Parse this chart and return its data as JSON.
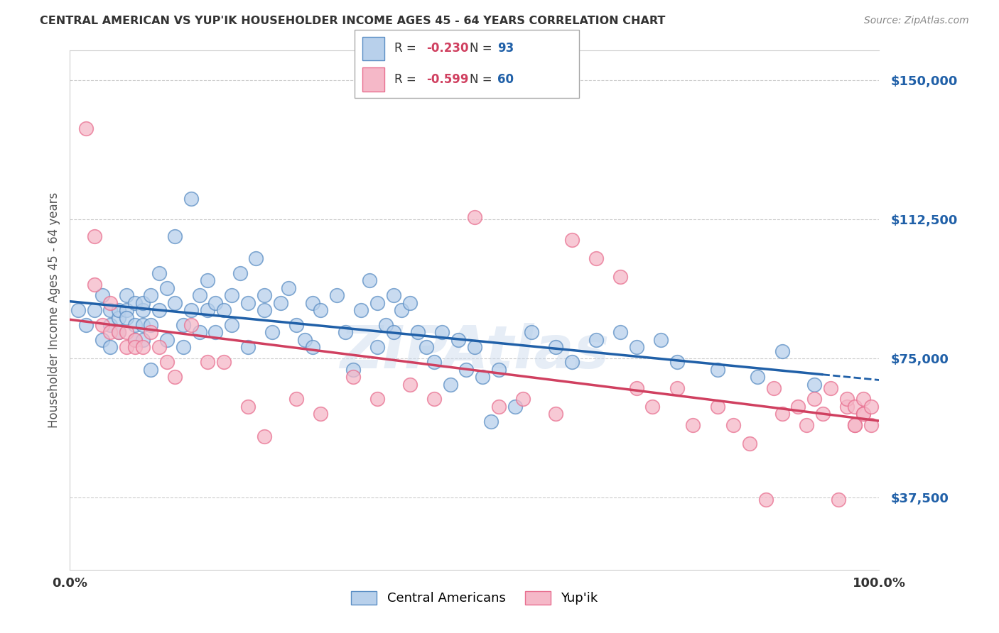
{
  "title": "CENTRAL AMERICAN VS YUP'IK HOUSEHOLDER INCOME AGES 45 - 64 YEARS CORRELATION CHART",
  "source": "Source: ZipAtlas.com",
  "ylabel": "Householder Income Ages 45 - 64 years",
  "ytick_values": [
    37500,
    75000,
    112500,
    150000
  ],
  "ymin": 18000,
  "ymax": 158000,
  "xmin": 0.0,
  "xmax": 1.0,
  "blue_R": "-0.230",
  "blue_N": "93",
  "pink_R": "-0.599",
  "pink_N": "60",
  "blue_fill": "#b8d0eb",
  "pink_fill": "#f5b8c8",
  "blue_edge": "#5b8ec4",
  "pink_edge": "#e87090",
  "blue_line_color": "#2060a8",
  "pink_line_color": "#d04060",
  "r_color": "#d04060",
  "n_color": "#2060a8",
  "watermark": "ZIPAtlas",
  "legend_blue_label": "Central Americans",
  "legend_pink_label": "Yup'ik",
  "blue_scatter_x": [
    0.01,
    0.02,
    0.03,
    0.04,
    0.04,
    0.05,
    0.05,
    0.05,
    0.06,
    0.06,
    0.06,
    0.07,
    0.07,
    0.07,
    0.08,
    0.08,
    0.08,
    0.09,
    0.09,
    0.09,
    0.09,
    0.1,
    0.1,
    0.1,
    0.11,
    0.11,
    0.12,
    0.12,
    0.13,
    0.13,
    0.14,
    0.14,
    0.15,
    0.15,
    0.16,
    0.16,
    0.17,
    0.17,
    0.18,
    0.18,
    0.19,
    0.2,
    0.2,
    0.21,
    0.22,
    0.22,
    0.23,
    0.24,
    0.24,
    0.25,
    0.26,
    0.27,
    0.28,
    0.29,
    0.3,
    0.3,
    0.31,
    0.33,
    0.34,
    0.35,
    0.36,
    0.37,
    0.38,
    0.38,
    0.39,
    0.4,
    0.4,
    0.41,
    0.42,
    0.43,
    0.44,
    0.45,
    0.46,
    0.47,
    0.48,
    0.49,
    0.5,
    0.51,
    0.52,
    0.53,
    0.55,
    0.57,
    0.6,
    0.62,
    0.65,
    0.68,
    0.7,
    0.73,
    0.75,
    0.8,
    0.85,
    0.88,
    0.92
  ],
  "blue_scatter_y": [
    88000,
    84000,
    88000,
    92000,
    80000,
    88000,
    84000,
    78000,
    86000,
    88000,
    82000,
    88000,
    86000,
    92000,
    84000,
    80000,
    90000,
    88000,
    84000,
    80000,
    90000,
    92000,
    84000,
    72000,
    98000,
    88000,
    94000,
    80000,
    108000,
    90000,
    84000,
    78000,
    118000,
    88000,
    92000,
    82000,
    96000,
    88000,
    90000,
    82000,
    88000,
    92000,
    84000,
    98000,
    90000,
    78000,
    102000,
    92000,
    88000,
    82000,
    90000,
    94000,
    84000,
    80000,
    90000,
    78000,
    88000,
    92000,
    82000,
    72000,
    88000,
    96000,
    90000,
    78000,
    84000,
    92000,
    82000,
    88000,
    90000,
    82000,
    78000,
    74000,
    82000,
    68000,
    80000,
    72000,
    78000,
    70000,
    58000,
    72000,
    62000,
    82000,
    78000,
    74000,
    80000,
    82000,
    78000,
    80000,
    74000,
    72000,
    70000,
    77000,
    68000
  ],
  "pink_scatter_x": [
    0.02,
    0.03,
    0.03,
    0.04,
    0.05,
    0.05,
    0.06,
    0.07,
    0.07,
    0.08,
    0.08,
    0.09,
    0.1,
    0.11,
    0.12,
    0.13,
    0.15,
    0.17,
    0.19,
    0.22,
    0.24,
    0.28,
    0.31,
    0.35,
    0.38,
    0.42,
    0.45,
    0.5,
    0.53,
    0.56,
    0.6,
    0.62,
    0.65,
    0.68,
    0.7,
    0.72,
    0.75,
    0.77,
    0.8,
    0.82,
    0.84,
    0.86,
    0.87,
    0.88,
    0.9,
    0.91,
    0.92,
    0.93,
    0.94,
    0.95,
    0.96,
    0.96,
    0.97,
    0.97,
    0.97,
    0.98,
    0.98,
    0.98,
    0.99,
    0.99
  ],
  "pink_scatter_y": [
    137000,
    95000,
    108000,
    84000,
    82000,
    90000,
    82000,
    78000,
    82000,
    80000,
    78000,
    78000,
    82000,
    78000,
    74000,
    70000,
    84000,
    74000,
    74000,
    62000,
    54000,
    64000,
    60000,
    70000,
    64000,
    68000,
    64000,
    113000,
    62000,
    64000,
    60000,
    107000,
    102000,
    97000,
    67000,
    62000,
    67000,
    57000,
    62000,
    57000,
    52000,
    37000,
    67000,
    60000,
    62000,
    57000,
    64000,
    60000,
    67000,
    37000,
    62000,
    64000,
    57000,
    62000,
    57000,
    60000,
    64000,
    60000,
    62000,
    57000
  ]
}
